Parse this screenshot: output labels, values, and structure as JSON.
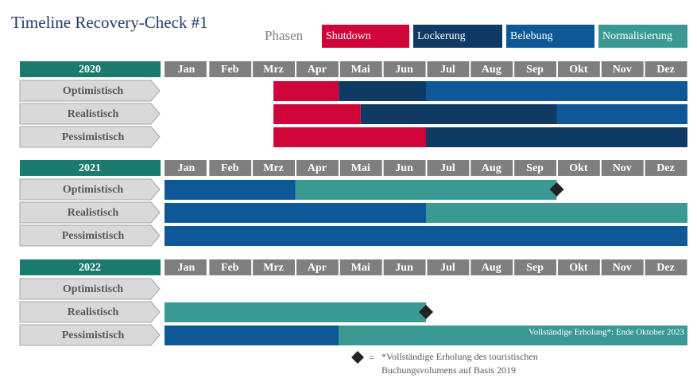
{
  "title": "Timeline Recovery-Check #1",
  "legend_label": "Phasen",
  "phases": [
    {
      "name": "Shutdown",
      "color": "#d0063b"
    },
    {
      "name": "Lockerung",
      "color": "#0f3a63"
    },
    {
      "name": "Belebung",
      "color": "#0f5898"
    },
    {
      "name": "Normalisierung",
      "color": "#3a9a93"
    }
  ],
  "footnote": {
    "lines": [
      "*Vollständige Erholung des touristischen",
      "Buchungsvolumens auf Basis 2019"
    ],
    "equals": "="
  },
  "chart_data": [
    {
      "type": "gantt",
      "title": "2020",
      "categories": [
        "Jan",
        "Feb",
        "Mrz",
        "Apr",
        "Mai",
        "Jun",
        "Jul",
        "Aug",
        "Sep",
        "Okt",
        "Nov",
        "Dez"
      ],
      "rows": [
        {
          "name": "Optimistisch",
          "segments": [
            {
              "phase": 0,
              "start": 2.5,
              "end": 4
            },
            {
              "phase": 1,
              "start": 4,
              "end": 6
            },
            {
              "phase": 2,
              "start": 6,
              "end": 12
            }
          ]
        },
        {
          "name": "Realistisch",
          "segments": [
            {
              "phase": 0,
              "start": 2.5,
              "end": 4.5
            },
            {
              "phase": 1,
              "start": 4.5,
              "end": 9
            },
            {
              "phase": 2,
              "start": 9,
              "end": 12
            }
          ]
        },
        {
          "name": "Pessimistisch",
          "segments": [
            {
              "phase": 0,
              "start": 2.5,
              "end": 6
            },
            {
              "phase": 1,
              "start": 6,
              "end": 12
            }
          ]
        }
      ]
    },
    {
      "type": "gantt",
      "title": "2021",
      "categories": [
        "Jan",
        "Feb",
        "Mrz",
        "Apr",
        "Mai",
        "Jun",
        "Jul",
        "Aug",
        "Sep",
        "Okt",
        "Nov",
        "Dez"
      ],
      "rows": [
        {
          "name": "Optimistisch",
          "segments": [
            {
              "phase": 2,
              "start": 0,
              "end": 3
            },
            {
              "phase": 3,
              "start": 3,
              "end": 9
            }
          ],
          "marker": 9
        },
        {
          "name": "Realistisch",
          "segments": [
            {
              "phase": 2,
              "start": 0,
              "end": 6
            },
            {
              "phase": 3,
              "start": 6,
              "end": 12
            }
          ]
        },
        {
          "name": "Pessimistisch",
          "segments": [
            {
              "phase": 2,
              "start": 0,
              "end": 12
            }
          ]
        }
      ]
    },
    {
      "type": "gantt",
      "title": "2022",
      "categories": [
        "Jan",
        "Feb",
        "Mrz",
        "Apr",
        "Mai",
        "Jun",
        "Jul",
        "Aug",
        "Sep",
        "Okt",
        "Nov",
        "Dez"
      ],
      "rows": [
        {
          "name": "Optimistisch",
          "segments": []
        },
        {
          "name": "Realistisch",
          "segments": [
            {
              "phase": 3,
              "start": 0,
              "end": 6
            }
          ],
          "marker": 6
        },
        {
          "name": "Pessimistisch",
          "segments": [
            {
              "phase": 2,
              "start": 0,
              "end": 4
            },
            {
              "phase": 3,
              "start": 4,
              "end": 12
            }
          ],
          "annotation": "Vollständige Erholung*: Ende Oktober 2023"
        }
      ]
    }
  ]
}
